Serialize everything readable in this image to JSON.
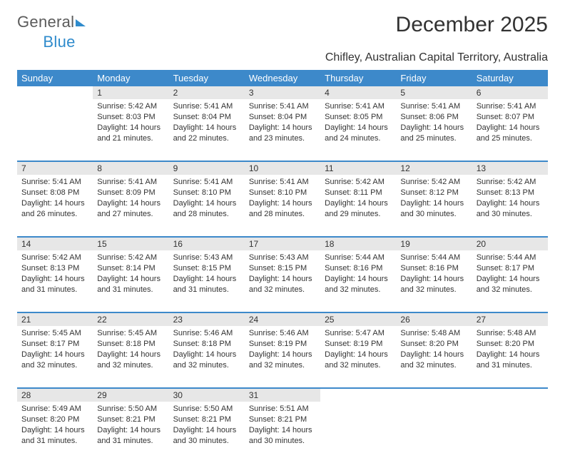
{
  "brand": {
    "word1": "General",
    "word2": "Blue"
  },
  "title": "December 2025",
  "location": "Chifley, Australian Capital Territory, Australia",
  "colors": {
    "header_bg": "#3d89ca",
    "header_fg": "#ffffff",
    "daynum_bg": "#e7e7e7",
    "divider": "#3d89ca",
    "text": "#333333",
    "brand_accent": "#2f8bcc",
    "page_bg": "#ffffff"
  },
  "typography": {
    "title_fontsize": 30,
    "subtitle_fontsize": 16,
    "header_fontsize": 13,
    "daynum_fontsize": 12,
    "cell_fontsize": 11
  },
  "day_labels": [
    "Sunday",
    "Monday",
    "Tuesday",
    "Wednesday",
    "Thursday",
    "Friday",
    "Saturday"
  ],
  "weeks": [
    {
      "nums": [
        "",
        "1",
        "2",
        "3",
        "4",
        "5",
        "6"
      ],
      "cells": [
        null,
        {
          "sunrise": "Sunrise: 5:42 AM",
          "sunset": "Sunset: 8:03 PM",
          "day1": "Daylight: 14 hours",
          "day2": "and 21 minutes."
        },
        {
          "sunrise": "Sunrise: 5:41 AM",
          "sunset": "Sunset: 8:04 PM",
          "day1": "Daylight: 14 hours",
          "day2": "and 22 minutes."
        },
        {
          "sunrise": "Sunrise: 5:41 AM",
          "sunset": "Sunset: 8:04 PM",
          "day1": "Daylight: 14 hours",
          "day2": "and 23 minutes."
        },
        {
          "sunrise": "Sunrise: 5:41 AM",
          "sunset": "Sunset: 8:05 PM",
          "day1": "Daylight: 14 hours",
          "day2": "and 24 minutes."
        },
        {
          "sunrise": "Sunrise: 5:41 AM",
          "sunset": "Sunset: 8:06 PM",
          "day1": "Daylight: 14 hours",
          "day2": "and 25 minutes."
        },
        {
          "sunrise": "Sunrise: 5:41 AM",
          "sunset": "Sunset: 8:07 PM",
          "day1": "Daylight: 14 hours",
          "day2": "and 25 minutes."
        }
      ]
    },
    {
      "nums": [
        "7",
        "8",
        "9",
        "10",
        "11",
        "12",
        "13"
      ],
      "cells": [
        {
          "sunrise": "Sunrise: 5:41 AM",
          "sunset": "Sunset: 8:08 PM",
          "day1": "Daylight: 14 hours",
          "day2": "and 26 minutes."
        },
        {
          "sunrise": "Sunrise: 5:41 AM",
          "sunset": "Sunset: 8:09 PM",
          "day1": "Daylight: 14 hours",
          "day2": "and 27 minutes."
        },
        {
          "sunrise": "Sunrise: 5:41 AM",
          "sunset": "Sunset: 8:10 PM",
          "day1": "Daylight: 14 hours",
          "day2": "and 28 minutes."
        },
        {
          "sunrise": "Sunrise: 5:41 AM",
          "sunset": "Sunset: 8:10 PM",
          "day1": "Daylight: 14 hours",
          "day2": "and 28 minutes."
        },
        {
          "sunrise": "Sunrise: 5:42 AM",
          "sunset": "Sunset: 8:11 PM",
          "day1": "Daylight: 14 hours",
          "day2": "and 29 minutes."
        },
        {
          "sunrise": "Sunrise: 5:42 AM",
          "sunset": "Sunset: 8:12 PM",
          "day1": "Daylight: 14 hours",
          "day2": "and 30 minutes."
        },
        {
          "sunrise": "Sunrise: 5:42 AM",
          "sunset": "Sunset: 8:13 PM",
          "day1": "Daylight: 14 hours",
          "day2": "and 30 minutes."
        }
      ]
    },
    {
      "nums": [
        "14",
        "15",
        "16",
        "17",
        "18",
        "19",
        "20"
      ],
      "cells": [
        {
          "sunrise": "Sunrise: 5:42 AM",
          "sunset": "Sunset: 8:13 PM",
          "day1": "Daylight: 14 hours",
          "day2": "and 31 minutes."
        },
        {
          "sunrise": "Sunrise: 5:42 AM",
          "sunset": "Sunset: 8:14 PM",
          "day1": "Daylight: 14 hours",
          "day2": "and 31 minutes."
        },
        {
          "sunrise": "Sunrise: 5:43 AM",
          "sunset": "Sunset: 8:15 PM",
          "day1": "Daylight: 14 hours",
          "day2": "and 31 minutes."
        },
        {
          "sunrise": "Sunrise: 5:43 AM",
          "sunset": "Sunset: 8:15 PM",
          "day1": "Daylight: 14 hours",
          "day2": "and 32 minutes."
        },
        {
          "sunrise": "Sunrise: 5:44 AM",
          "sunset": "Sunset: 8:16 PM",
          "day1": "Daylight: 14 hours",
          "day2": "and 32 minutes."
        },
        {
          "sunrise": "Sunrise: 5:44 AM",
          "sunset": "Sunset: 8:16 PM",
          "day1": "Daylight: 14 hours",
          "day2": "and 32 minutes."
        },
        {
          "sunrise": "Sunrise: 5:44 AM",
          "sunset": "Sunset: 8:17 PM",
          "day1": "Daylight: 14 hours",
          "day2": "and 32 minutes."
        }
      ]
    },
    {
      "nums": [
        "21",
        "22",
        "23",
        "24",
        "25",
        "26",
        "27"
      ],
      "cells": [
        {
          "sunrise": "Sunrise: 5:45 AM",
          "sunset": "Sunset: 8:17 PM",
          "day1": "Daylight: 14 hours",
          "day2": "and 32 minutes."
        },
        {
          "sunrise": "Sunrise: 5:45 AM",
          "sunset": "Sunset: 8:18 PM",
          "day1": "Daylight: 14 hours",
          "day2": "and 32 minutes."
        },
        {
          "sunrise": "Sunrise: 5:46 AM",
          "sunset": "Sunset: 8:18 PM",
          "day1": "Daylight: 14 hours",
          "day2": "and 32 minutes."
        },
        {
          "sunrise": "Sunrise: 5:46 AM",
          "sunset": "Sunset: 8:19 PM",
          "day1": "Daylight: 14 hours",
          "day2": "and 32 minutes."
        },
        {
          "sunrise": "Sunrise: 5:47 AM",
          "sunset": "Sunset: 8:19 PM",
          "day1": "Daylight: 14 hours",
          "day2": "and 32 minutes."
        },
        {
          "sunrise": "Sunrise: 5:48 AM",
          "sunset": "Sunset: 8:20 PM",
          "day1": "Daylight: 14 hours",
          "day2": "and 32 minutes."
        },
        {
          "sunrise": "Sunrise: 5:48 AM",
          "sunset": "Sunset: 8:20 PM",
          "day1": "Daylight: 14 hours",
          "day2": "and 31 minutes."
        }
      ]
    },
    {
      "nums": [
        "28",
        "29",
        "30",
        "31",
        "",
        "",
        ""
      ],
      "cells": [
        {
          "sunrise": "Sunrise: 5:49 AM",
          "sunset": "Sunset: 8:20 PM",
          "day1": "Daylight: 14 hours",
          "day2": "and 31 minutes."
        },
        {
          "sunrise": "Sunrise: 5:50 AM",
          "sunset": "Sunset: 8:21 PM",
          "day1": "Daylight: 14 hours",
          "day2": "and 31 minutes."
        },
        {
          "sunrise": "Sunrise: 5:50 AM",
          "sunset": "Sunset: 8:21 PM",
          "day1": "Daylight: 14 hours",
          "day2": "and 30 minutes."
        },
        {
          "sunrise": "Sunrise: 5:51 AM",
          "sunset": "Sunset: 8:21 PM",
          "day1": "Daylight: 14 hours",
          "day2": "and 30 minutes."
        },
        null,
        null,
        null
      ]
    }
  ]
}
